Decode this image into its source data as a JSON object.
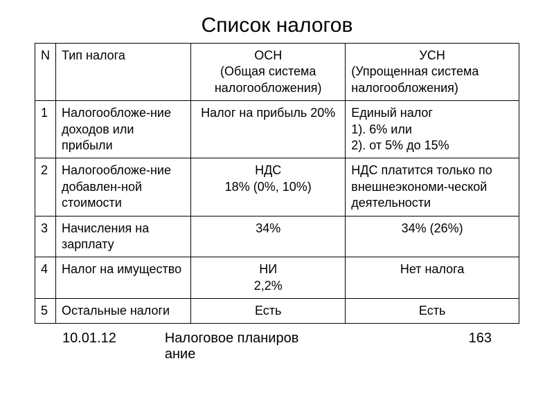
{
  "title": "Список налогов",
  "table": {
    "headers": {
      "n": "N",
      "type": "Тип налога",
      "osn_line1": "ОСН",
      "osn_line2": "(Общая система налогообложения)",
      "usn_line1": "УСН",
      "usn_line2": "(Упрощенная система налогообложения)"
    },
    "rows": [
      {
        "n": "1",
        "type": "Налогообложе-ние доходов или прибыли",
        "osn": "Налог на прибыль 20%",
        "usn_line1": "Единый налог",
        "usn_line2": "1). 6% или",
        "usn_line3": "2). от 5% до 15%"
      },
      {
        "n": "2",
        "type": "Налогообложе-ние добавлен-ной стоимости",
        "osn_line1": "НДС",
        "osn_line2": "18% (0%, 10%)",
        "usn": "НДС платится только по внешнеэкономи-ческой деятельности"
      },
      {
        "n": "3",
        "type": "Начисления на зарплату",
        "osn": "34%",
        "usn": "34% (26%)"
      },
      {
        "n": "4",
        "type": "Налог на имущество",
        "osn_line1": "НИ",
        "osn_line2": "2,2%",
        "usn": "Нет налога"
      },
      {
        "n": "5",
        "type": "Остальные налоги",
        "osn": "Есть",
        "usn": "Есть"
      }
    ]
  },
  "footer": {
    "date": "10.01.12",
    "center_line1": "Налоговое планиров",
    "center_line2": "ание",
    "page": "163"
  },
  "styling": {
    "background_color": "#ffffff",
    "text_color": "#000000",
    "border_color": "#000000",
    "title_fontsize": 30,
    "cell_fontsize": 18,
    "footer_fontsize": 20,
    "font_family": "Arial"
  }
}
